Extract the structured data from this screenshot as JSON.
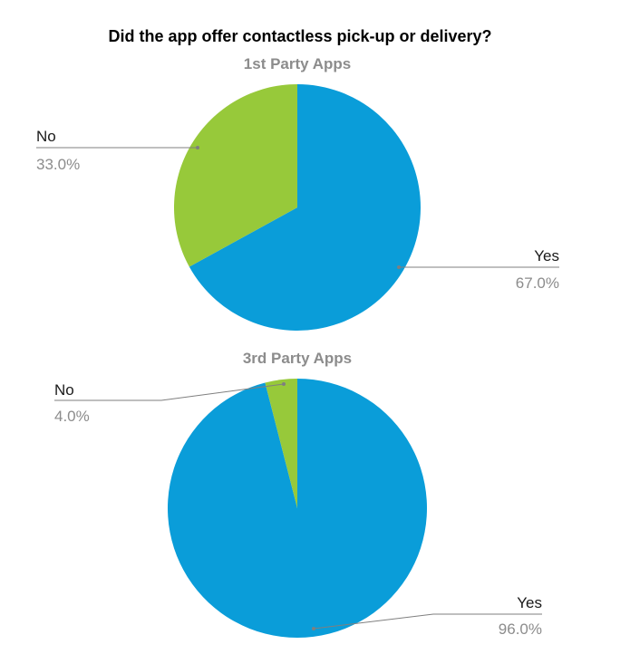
{
  "colors": {
    "yes": "#0a9dd9",
    "no": "#97c93a",
    "leader": "#7f7f7f"
  },
  "chart_data": {
    "title": "Did the app offer contactless pick-up or delivery?",
    "charts": [
      {
        "type": "pie",
        "subtitle": "1st Party Apps",
        "slices": [
          {
            "name": "Yes",
            "value": 67.0,
            "label": "67.0%"
          },
          {
            "name": "No",
            "value": 33.0,
            "label": "33.0%"
          }
        ]
      },
      {
        "type": "pie",
        "subtitle": "3rd Party Apps",
        "slices": [
          {
            "name": "Yes",
            "value": 96.0,
            "label": "96.0%"
          },
          {
            "name": "No",
            "value": 4.0,
            "label": "4.0%"
          }
        ]
      }
    ]
  }
}
